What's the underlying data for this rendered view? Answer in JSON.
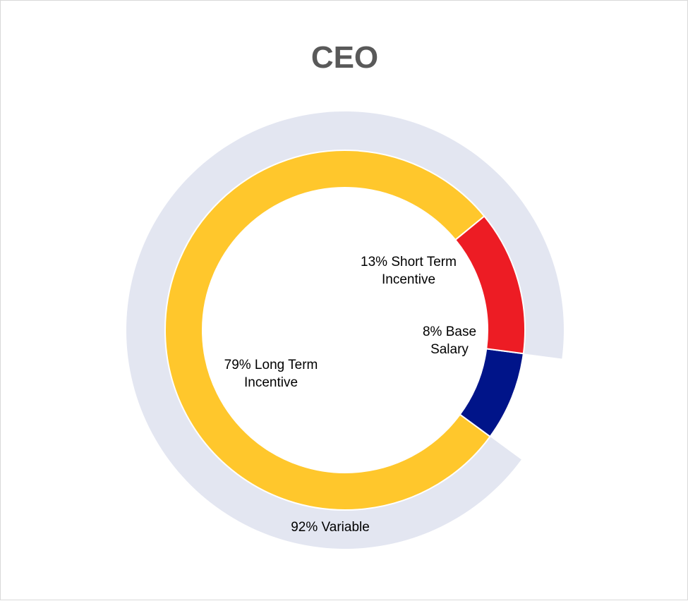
{
  "chart_data": {
    "type": "pie",
    "title": "CEO",
    "inner_ring": {
      "slices": [
        {
          "label": "Base Salary",
          "value": 8,
          "label_lines": [
            "8% Base",
            "Salary"
          ],
          "color": "#001489"
        },
        {
          "label": "Long Term Incentive",
          "value": 79,
          "label_lines": [
            "79% Long Term",
            "Incentive"
          ],
          "color": "#FFC72C"
        },
        {
          "label": "Short Term Incentive",
          "value": 13,
          "label_lines": [
            "13% Short Term",
            "Incentive"
          ],
          "color": "#ED1C24"
        }
      ]
    },
    "outer_ring": {
      "slices": [
        {
          "label": "Variable",
          "value": 92,
          "label_lines": [
            "92% Variable"
          ],
          "color": "#E3E6F1"
        }
      ]
    }
  }
}
